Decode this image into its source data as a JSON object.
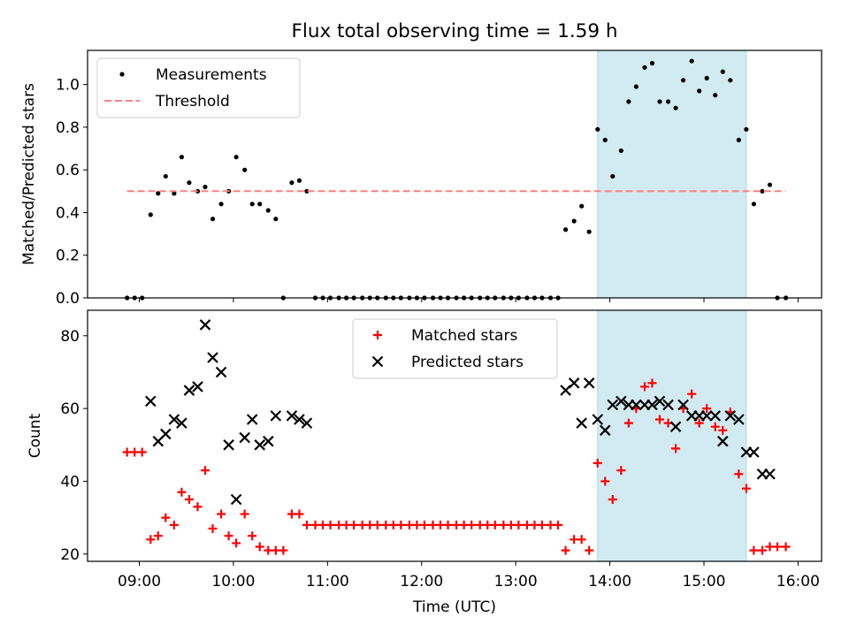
{
  "figure": {
    "title": "Flux total observing time = 1.59 h",
    "shade_color": "#add8e6",
    "shade_range_hours": [
      13.87,
      15.45
    ]
  },
  "chart_data": [
    {
      "type": "scatter",
      "name": "ratio",
      "title": "Flux total observing time = 1.59 h",
      "xlabel": "",
      "ylabel": "Matched/Predicted stars",
      "xlim": [
        8.45,
        16.25
      ],
      "ylim": [
        0,
        1.16
      ],
      "yticks": [
        0.0,
        0.2,
        0.4,
        0.6,
        0.8,
        1.0
      ],
      "ytick_labels": [
        "0.0",
        "0.2",
        "0.4",
        "0.6",
        "0.8",
        "1.0"
      ],
      "legend_position": "upper-left",
      "series": [
        {
          "name": "Measurements",
          "kind": "dot",
          "color": "#000000",
          "x": [
            8.87,
            8.95,
            9.03,
            9.12,
            9.2,
            9.28,
            9.37,
            9.45,
            9.53,
            9.62,
            9.7,
            9.78,
            9.87,
            9.95,
            10.03,
            10.12,
            10.2,
            10.28,
            10.37,
            10.45,
            10.53,
            10.62,
            10.7,
            10.78,
            10.87,
            10.95,
            11.03,
            11.12,
            11.2,
            11.28,
            11.37,
            11.45,
            11.53,
            11.62,
            11.7,
            11.78,
            11.87,
            11.95,
            12.03,
            12.12,
            12.2,
            12.28,
            12.37,
            12.45,
            12.53,
            12.62,
            12.7,
            12.78,
            12.87,
            12.95,
            13.03,
            13.12,
            13.2,
            13.28,
            13.37,
            13.45,
            13.53,
            13.62,
            13.7,
            13.78,
            13.87,
            13.95,
            14.03,
            14.12,
            14.2,
            14.28,
            14.37,
            14.45,
            14.53,
            14.62,
            14.7,
            14.78,
            14.87,
            14.95,
            15.03,
            15.12,
            15.2,
            15.28,
            15.37,
            15.45,
            15.53,
            15.62,
            15.7,
            15.78,
            15.87
          ],
          "y": [
            0,
            0,
            0,
            0.39,
            0.49,
            0.57,
            0.49,
            0.66,
            0.54,
            0.5,
            0.52,
            0.37,
            0.44,
            0.5,
            0.66,
            0.6,
            0.44,
            0.44,
            0.41,
            0.37,
            0,
            0.54,
            0.55,
            0.5,
            0,
            0,
            0,
            0,
            0,
            0,
            0,
            0,
            0,
            0,
            0,
            0,
            0,
            0,
            0,
            0,
            0,
            0,
            0,
            0,
            0,
            0,
            0,
            0,
            0,
            0,
            0,
            0,
            0,
            0,
            0,
            0,
            0.32,
            0.36,
            0.43,
            0.31,
            0.79,
            0.74,
            0.57,
            0.69,
            0.92,
            0.99,
            1.08,
            1.1,
            0.92,
            0.92,
            0.89,
            1.02,
            1.11,
            0.97,
            1.03,
            0.95,
            1.06,
            1.02,
            0.74,
            0.79,
            0.44,
            0.5,
            0.53,
            0,
            0
          ]
        },
        {
          "name": "Threshold",
          "kind": "dashed-line",
          "color": "#ff7f7f",
          "x": [
            8.87,
            15.87
          ],
          "y": [
            0.5,
            0.5
          ]
        }
      ]
    },
    {
      "type": "scatter",
      "name": "counts",
      "xlabel": "Time (UTC)",
      "ylabel": "Count",
      "xlim": [
        8.45,
        16.25
      ],
      "ylim": [
        18,
        87
      ],
      "yticks": [
        20,
        40,
        60,
        80
      ],
      "ytick_labels": [
        "20",
        "40",
        "60",
        "80"
      ],
      "xticks": [
        9,
        10,
        11,
        12,
        13,
        14,
        15,
        16
      ],
      "xtick_labels": [
        "09:00",
        "10:00",
        "11:00",
        "12:00",
        "13:00",
        "14:00",
        "15:00",
        "16:00"
      ],
      "legend_position": "upper-center",
      "series": [
        {
          "name": "Matched stars",
          "kind": "plus",
          "color": "#ff0000",
          "x": [
            8.87,
            8.95,
            9.03,
            9.12,
            9.2,
            9.28,
            9.37,
            9.45,
            9.53,
            9.62,
            9.7,
            9.78,
            9.87,
            9.95,
            10.03,
            10.12,
            10.2,
            10.28,
            10.37,
            10.45,
            10.53,
            10.62,
            10.7,
            10.78,
            10.87,
            10.95,
            11.03,
            11.12,
            11.2,
            11.28,
            11.37,
            11.45,
            11.53,
            11.62,
            11.7,
            11.78,
            11.87,
            11.95,
            12.03,
            12.12,
            12.2,
            12.28,
            12.37,
            12.45,
            12.53,
            12.62,
            12.7,
            12.78,
            12.87,
            12.95,
            13.03,
            13.12,
            13.2,
            13.28,
            13.37,
            13.45,
            13.53,
            13.62,
            13.7,
            13.78,
            13.87,
            13.95,
            14.03,
            14.12,
            14.2,
            14.28,
            14.37,
            14.45,
            14.53,
            14.62,
            14.7,
            14.78,
            14.87,
            14.95,
            15.03,
            15.12,
            15.2,
            15.28,
            15.37,
            15.45,
            15.53,
            15.62,
            15.7,
            15.78,
            15.87
          ],
          "y": [
            48,
            48,
            48,
            24,
            25,
            30,
            28,
            37,
            35,
            33,
            43,
            27,
            31,
            25,
            23,
            31,
            25,
            22,
            21,
            21,
            21,
            31,
            31,
            28,
            28,
            28,
            28,
            28,
            28,
            28,
            28,
            28,
            28,
            28,
            28,
            28,
            28,
            28,
            28,
            28,
            28,
            28,
            28,
            28,
            28,
            28,
            28,
            28,
            28,
            28,
            28,
            28,
            28,
            28,
            28,
            28,
            21,
            24,
            24,
            21,
            45,
            40,
            35,
            43,
            56,
            60,
            66,
            67,
            57,
            56,
            49,
            60,
            64,
            56,
            60,
            55,
            54,
            59,
            42,
            38,
            21,
            21,
            22,
            22,
            22
          ]
        },
        {
          "name": "Predicted stars",
          "kind": "x",
          "color": "#000000",
          "x": [
            9.12,
            9.2,
            9.28,
            9.37,
            9.45,
            9.53,
            9.62,
            9.7,
            9.78,
            9.87,
            9.95,
            10.03,
            10.12,
            10.2,
            10.28,
            10.37,
            10.45,
            10.62,
            10.7,
            10.78,
            13.53,
            13.62,
            13.7,
            13.78,
            13.87,
            13.95,
            14.03,
            14.12,
            14.2,
            14.28,
            14.37,
            14.45,
            14.53,
            14.62,
            14.7,
            14.78,
            14.87,
            14.95,
            15.03,
            15.12,
            15.2,
            15.28,
            15.37,
            15.45,
            15.53,
            15.62,
            15.7
          ],
          "y": [
            62,
            51,
            53,
            57,
            56,
            65,
            66,
            83,
            74,
            70,
            50,
            35,
            52,
            57,
            50,
            51,
            58,
            58,
            57,
            56,
            65,
            67,
            56,
            67,
            57,
            54,
            61,
            62,
            61,
            61,
            61,
            61,
            62,
            61,
            55,
            61,
            58,
            58,
            58,
            58,
            51,
            58,
            57,
            48,
            48,
            42,
            42
          ]
        }
      ]
    }
  ]
}
